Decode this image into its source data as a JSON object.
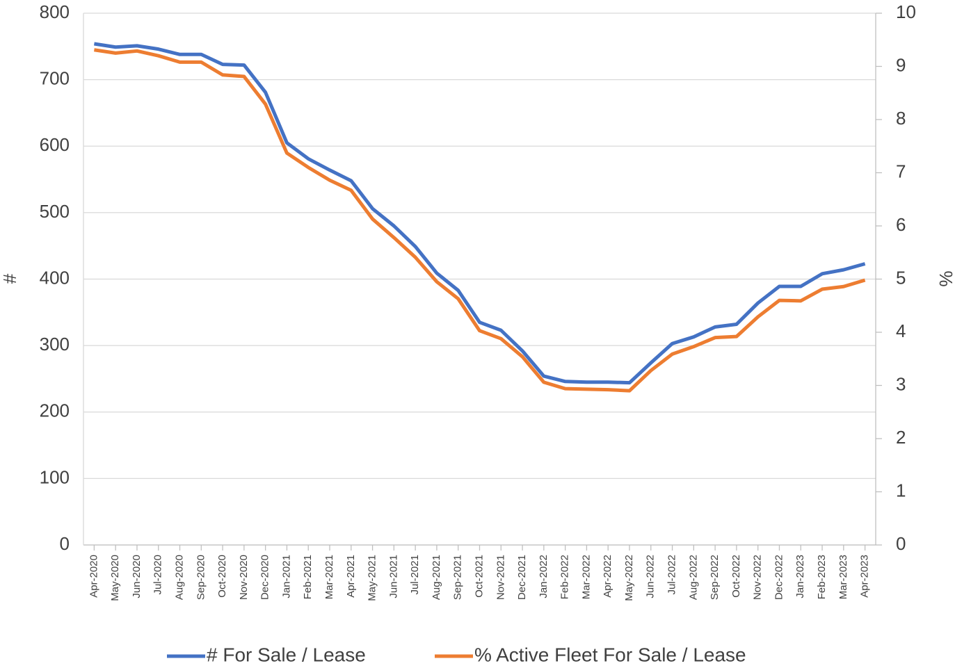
{
  "chart_data": {
    "type": "line",
    "y_label": "#",
    "y2_label": "%",
    "categories": [
      "Apr-2020",
      "May-2020",
      "Jun-2020",
      "Jul-2020",
      "Aug-2020",
      "Sep-2020",
      "Oct-2020",
      "Nov-2020",
      "Dec-2020",
      "Jan-2021",
      "Feb-2021",
      "Mar-2021",
      "Apr-2021",
      "May-2021",
      "Jun-2021",
      "Jul-2021",
      "Aug-2021",
      "Sep-2021",
      "Oct-2021",
      "Nov-2021",
      "Dec-2021",
      "Jan-2022",
      "Feb-2022",
      "Mar-2022",
      "Apr-2022",
      "May-2022",
      "Jun-2022",
      "Jul-2022",
      "Aug-2022",
      "Sep-2022",
      "Oct-2022",
      "Nov-2022",
      "Dec-2022",
      "Jan-2023",
      "Feb-2023",
      "Mar-2023",
      "Apr-2023"
    ],
    "series": [
      {
        "name": "# For Sale / Lease",
        "color": "#4472c4",
        "axis": "y",
        "values": [
          754,
          749,
          751,
          746,
          738,
          738,
          723,
          722,
          681,
          605,
          581,
          564,
          548,
          506,
          480,
          449,
          409,
          383,
          335,
          323,
          292,
          254,
          246,
          245,
          245,
          244,
          274,
          303,
          313,
          328,
          332,
          364,
          389,
          389,
          408,
          414,
          423
        ]
      },
      {
        "name": "% Active Fleet For Sale / Lease",
        "color": "#ed7d31",
        "axis": "y2",
        "values": [
          9.31,
          9.25,
          9.29,
          9.2,
          9.08,
          9.08,
          8.84,
          8.81,
          8.29,
          7.37,
          7.1,
          6.86,
          6.67,
          6.13,
          5.78,
          5.41,
          4.95,
          4.63,
          4.03,
          3.88,
          3.54,
          3.06,
          2.94,
          2.93,
          2.92,
          2.9,
          3.28,
          3.59,
          3.73,
          3.9,
          3.92,
          4.29,
          4.6,
          4.59,
          4.81,
          4.86,
          4.98
        ]
      }
    ],
    "ylim": [
      0,
      800
    ],
    "yticks": [
      0,
      100,
      200,
      300,
      400,
      500,
      600,
      700,
      800
    ],
    "y2lim": [
      0,
      10
    ],
    "y2ticks": [
      0,
      1,
      2,
      3,
      4,
      5,
      6,
      7,
      8,
      9,
      10
    ],
    "grid": true,
    "legend": "bottom"
  }
}
